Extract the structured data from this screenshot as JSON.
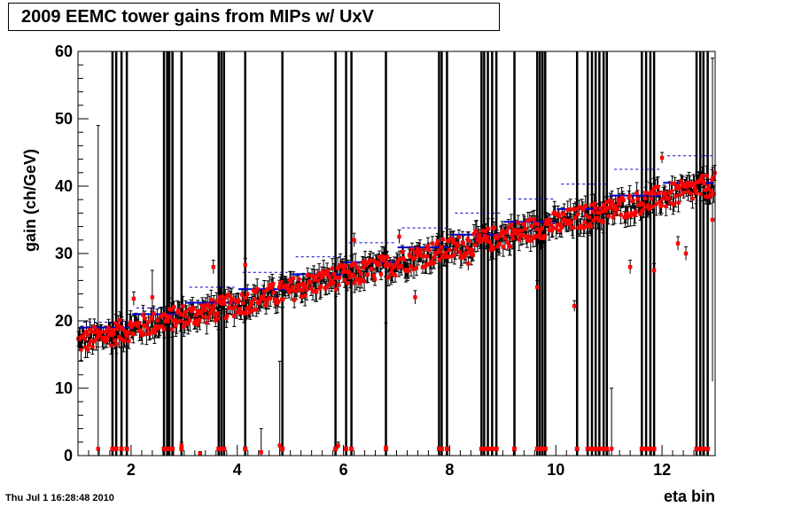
{
  "title": "2009 EEMC tower gains from MIPs w/ UxV",
  "timestamp": "Thu Jul  1 16:28:48 2010",
  "colors": {
    "points": "#ff0000",
    "errors": "#000000",
    "mean_lines": "#0000cc"
  },
  "chart_data": {
    "type": "scatter",
    "title": "2009 EEMC tower gains from MIPs w/ UxV",
    "xlabel": "eta bin",
    "ylabel": "gain (ch/GeV)",
    "xlim": [
      1,
      13
    ],
    "ylim": [
      0,
      60
    ],
    "x_ticks": [
      2,
      4,
      6,
      8,
      10,
      12
    ],
    "y_ticks": [
      0,
      10,
      20,
      30,
      40,
      50,
      60
    ],
    "grid": false,
    "series_name": "",
    "eta_bins": [
      {
        "bin": 1,
        "mean": 19.0,
        "upper": 19.8
      },
      {
        "bin": 2,
        "mean": 21.0,
        "upper": 21.9
      },
      {
        "bin": 3,
        "mean": 22.7,
        "upper": 25.0
      },
      {
        "bin": 4,
        "mean": 24.7,
        "upper": 27.2
      },
      {
        "bin": 5,
        "mean": 26.9,
        "upper": 29.5
      },
      {
        "bin": 6,
        "mean": 28.7,
        "upper": 31.6
      },
      {
        "bin": 7,
        "mean": 30.9,
        "upper": 33.8
      },
      {
        "bin": 8,
        "mean": 32.8,
        "upper": 36.0
      },
      {
        "bin": 9,
        "mean": 34.7,
        "upper": 38.1
      },
      {
        "bin": 10,
        "mean": 36.6,
        "upper": 40.3
      },
      {
        "bin": 11,
        "mean": 38.6,
        "upper": 42.5
      },
      {
        "bin": 12,
        "mean": 40.5,
        "upper": 44.5
      }
    ],
    "outliers": [
      {
        "x": 1.38,
        "y": 1.0,
        "err": 48.0
      },
      {
        "x": 2.05,
        "y": 23.3,
        "err": 1.0
      },
      {
        "x": 2.4,
        "y": 23.5,
        "err": 4.0
      },
      {
        "x": 2.95,
        "y": 1.5,
        "err": 0.5
      },
      {
        "x": 3.3,
        "y": 0.3,
        "err": 0.3
      },
      {
        "x": 3.55,
        "y": 28.0,
        "err": 1.0
      },
      {
        "x": 4.15,
        "y": 28.3,
        "err": 1.0
      },
      {
        "x": 4.45,
        "y": 0.5,
        "err": 3.5
      },
      {
        "x": 4.8,
        "y": 1.5,
        "err": 12.5
      },
      {
        "x": 5.9,
        "y": 1.5,
        "err": 0.5
      },
      {
        "x": 6.2,
        "y": 32.0,
        "err": 1.0
      },
      {
        "x": 6.8,
        "y": 1.2,
        "err": 18.5
      },
      {
        "x": 7.05,
        "y": 32.5,
        "err": 1.0
      },
      {
        "x": 7.35,
        "y": 23.5,
        "err": 1.0
      },
      {
        "x": 8.35,
        "y": 28.5,
        "err": 1.0
      },
      {
        "x": 9.65,
        "y": 25.0,
        "err": 1.0
      },
      {
        "x": 10.35,
        "y": 22.2,
        "err": 0.8
      },
      {
        "x": 11.05,
        "y": 1.0,
        "err": 9.0
      },
      {
        "x": 11.4,
        "y": 28.0,
        "err": 1.0
      },
      {
        "x": 11.85,
        "y": 27.5,
        "err": 1.0
      },
      {
        "x": 12.0,
        "y": 44.2,
        "err": 0.8
      },
      {
        "x": 12.3,
        "y": 31.5,
        "err": 1.0
      },
      {
        "x": 12.45,
        "y": 30.0,
        "err": 1.0
      },
      {
        "x": 12.95,
        "y": 35.0,
        "err": 24.0
      }
    ],
    "dead_channels": [
      1.65,
      1.72,
      1.82,
      1.92,
      2.62,
      2.68,
      2.72,
      2.78,
      2.95,
      3.65,
      3.7,
      3.75,
      4.15,
      4.85,
      5.85,
      6.05,
      6.15,
      6.8,
      7.8,
      7.85,
      7.95,
      8.6,
      8.65,
      8.72,
      8.8,
      8.88,
      9.22,
      9.65,
      9.7,
      9.75,
      9.8,
      10.4,
      10.6,
      10.68,
      10.75,
      10.82,
      10.9,
      10.96,
      11.62,
      11.7,
      11.78,
      11.85,
      12.65,
      12.72,
      12.78,
      12.86
    ]
  }
}
